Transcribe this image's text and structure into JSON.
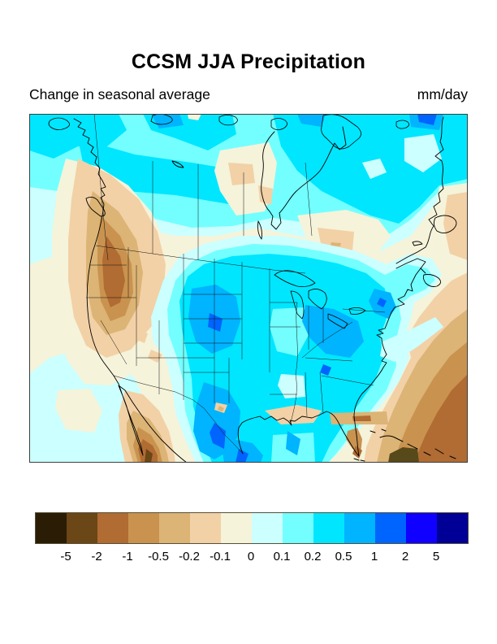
{
  "header": {
    "title": "CCSM JJA Precipitation",
    "subtitle": "Change in seasonal average",
    "units": "mm/day"
  },
  "colorbar": {
    "ticks": [
      "-5",
      "-2",
      "-1",
      "-0.5",
      "-0.2",
      "-0.1",
      "0",
      "0.1",
      "0.2",
      "0.5",
      "1",
      "2",
      "5"
    ],
    "segment_count": 14,
    "border_color": "#55503a"
  },
  "palette": [
    "#2b1d05",
    "#6b4616",
    "#b06c33",
    "#c9934f",
    "#dcb475",
    "#f2d1a7",
    "#f5f3da",
    "#ccffff",
    "#73ffff",
    "#00e6ff",
    "#00b4ff",
    "#0064ff",
    "#0f00ff",
    "#000096",
    "#57491a"
  ],
  "map": {
    "frame_color": "#3d3d3d",
    "coastline_color": "#000000",
    "border_line_color": "#111111"
  },
  "chart_data": {
    "type": "heatmap",
    "subtype": "filled-contour-map",
    "title": "CCSM JJA Precipitation",
    "subtitle": "Change in seasonal average",
    "units": "mm/day",
    "region": "North America",
    "contour_levels": [
      -5,
      -2,
      -1,
      -0.5,
      -0.2,
      -0.1,
      0,
      0.1,
      0.2,
      0.5,
      1,
      2,
      5
    ],
    "legend_position": "bottom",
    "regions_summary": [
      {
        "area": "High-latitude Canada and Arctic coast",
        "value_range": "+0.1 to +0.5 mm/day"
      },
      {
        "area": "British Columbia coast / Pacific Northwest interior",
        "value_range": "-0.5 to -2 mm/day"
      },
      {
        "area": "US Great Plains, Midwest and Southeast",
        "value_range": "+0.2 to +1 mm/day"
      },
      {
        "area": "Texas and north-central Mexico",
        "value_range": "+0.5 to +2 mm/day"
      },
      {
        "area": "Subtropical western Atlantic, Florida and Caribbean",
        "value_range": "-0.5 to -5 mm/day"
      },
      {
        "area": "Northwest Mexico / southern Baja",
        "value_range": "-0.5 to -2 mm/day"
      },
      {
        "area": "West of Hudson Bay and central Quebec",
        "value_range": "-0.1 to +0.1 mm/day"
      },
      {
        "area": "Eastern Pacific off California",
        "value_range": "0 to +0.1 mm/day"
      }
    ]
  }
}
